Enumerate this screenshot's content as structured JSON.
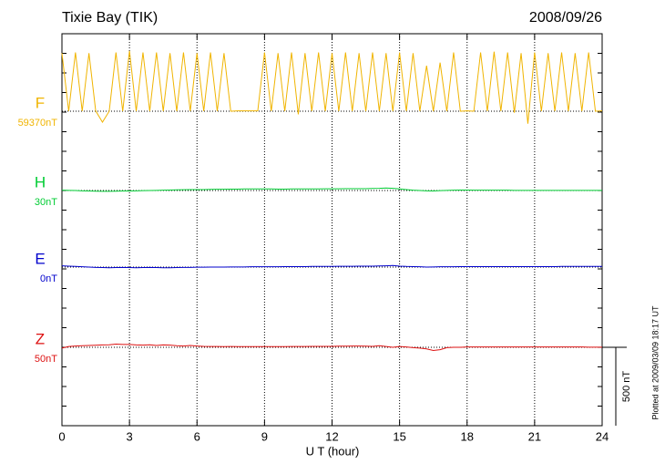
{
  "chart_data": {
    "type": "line",
    "title": "Tixie Bay (TIK)",
    "date": "2008/09/26",
    "x_label": "U T (hour)",
    "plotted_note": "Plotted at 2009/03/09 18:17 UT",
    "scale_bar": {
      "value": 500,
      "label": "500 nT"
    },
    "xlim": [
      0,
      24
    ],
    "xticks": [
      0,
      3,
      6,
      9,
      12,
      15,
      18,
      21,
      24
    ],
    "grid": true,
    "x": [
      0,
      0.3,
      0.6,
      0.9,
      1.2,
      1.5,
      1.8,
      2.1,
      2.4,
      2.7,
      3,
      3.3,
      3.6,
      3.9,
      4.2,
      4.5,
      4.8,
      5.1,
      5.4,
      5.7,
      6,
      6.3,
      6.6,
      6.9,
      7.2,
      7.5,
      7.8,
      8.1,
      8.4,
      8.7,
      9,
      9.3,
      9.6,
      9.9,
      10.2,
      10.5,
      10.8,
      11.1,
      11.4,
      11.7,
      12,
      12.3,
      12.6,
      12.9,
      13.2,
      13.5,
      13.8,
      14.1,
      14.4,
      14.7,
      15,
      15.3,
      15.6,
      15.9,
      16.2,
      16.5,
      16.8,
      17.1,
      17.4,
      17.7,
      18,
      18.3,
      18.6,
      18.9,
      19.2,
      19.5,
      19.8,
      20.1,
      20.4,
      20.7,
      21,
      21.3,
      21.6,
      21.9,
      22.2,
      22.5,
      22.8,
      23.1,
      23.4,
      23.7,
      24
    ],
    "series": [
      {
        "name": "F",
        "color": "#f0b400",
        "baseline": {
          "value": 59370,
          "label": "59370nT"
        },
        "values": [
          59740,
          59370,
          59745,
          59370,
          59740,
          59372,
          59300,
          59370,
          59745,
          59370,
          59755,
          59370,
          59745,
          59370,
          59745,
          59370,
          59740,
          59370,
          59745,
          59370,
          59740,
          59370,
          59745,
          59370,
          59740,
          59370,
          59372,
          59372,
          59372,
          59372,
          59745,
          59370,
          59740,
          59370,
          59745,
          59350,
          59740,
          59370,
          59745,
          59370,
          59740,
          59370,
          59745,
          59370,
          59740,
          59370,
          59745,
          59370,
          59740,
          59370,
          59745,
          59370,
          59740,
          59370,
          59660,
          59370,
          59680,
          59370,
          59745,
          59370,
          59372,
          59370,
          59745,
          59370,
          59750,
          59370,
          59745,
          59360,
          59740,
          59290,
          59745,
          59370,
          59740,
          59370,
          59745,
          59370,
          59740,
          59370,
          59745,
          59370,
          59372
        ]
      },
      {
        "name": "H",
        "color": "#00cc33",
        "baseline": {
          "value": 30,
          "label": "30nT"
        },
        "values": [
          32,
          31,
          30,
          28,
          27,
          26,
          25,
          25,
          26,
          27,
          27,
          28,
          29,
          30,
          31,
          32,
          33,
          34,
          35,
          36,
          36,
          36,
          37,
          38,
          38,
          39,
          39,
          40,
          40,
          40,
          40,
          40,
          39,
          39,
          40,
          40,
          40,
          40,
          40,
          41,
          41,
          41,
          42,
          42,
          42,
          42,
          43,
          44,
          46,
          44,
          40,
          36,
          32,
          30,
          28,
          27,
          29,
          31,
          32,
          33,
          33,
          32,
          32,
          32,
          32,
          32,
          32,
          31,
          31,
          31,
          31,
          31,
          31,
          31,
          31,
          31,
          31,
          31,
          31,
          31,
          31
        ]
      },
      {
        "name": "E",
        "color": "#0000cc",
        "baseline": {
          "value": 0,
          "label": "0nT"
        },
        "values": [
          8,
          6,
          4,
          2,
          0,
          -2,
          -3,
          -4,
          -3,
          -2,
          -3,
          -4,
          -3,
          -2,
          -3,
          -4,
          -4,
          -3,
          -2,
          -2,
          -1,
          -1,
          0,
          0,
          0,
          1,
          1,
          1,
          2,
          2,
          2,
          2,
          2,
          3,
          3,
          3,
          3,
          4,
          4,
          4,
          4,
          5,
          5,
          5,
          6,
          6,
          6,
          7,
          8,
          10,
          6,
          4,
          3,
          2,
          0,
          1,
          2,
          2,
          2,
          3,
          3,
          3,
          3,
          3,
          3,
          3,
          3,
          3,
          3,
          3,
          3,
          3,
          3,
          3,
          4,
          4,
          4,
          4,
          4,
          4,
          4
        ]
      },
      {
        "name": "Z",
        "color": "#dd1111",
        "baseline": {
          "value": 50,
          "label": "50nT"
        },
        "values": [
          45,
          55,
          58,
          60,
          62,
          63,
          65,
          66,
          70,
          68,
          68,
          65,
          64,
          66,
          62,
          65,
          64,
          60,
          58,
          62,
          58,
          56,
          55,
          55,
          54,
          55,
          54,
          54,
          54,
          54,
          54,
          54,
          54,
          54,
          55,
          55,
          55,
          56,
          56,
          56,
          56,
          57,
          57,
          58,
          58,
          57,
          56,
          60,
          55,
          50,
          55,
          52,
          48,
          45,
          40,
          30,
          35,
          48,
          50,
          50,
          52,
          52,
          52,
          52,
          52,
          52,
          52,
          52,
          52,
          52,
          52,
          52,
          52,
          52,
          52,
          52,
          52,
          52,
          51,
          51,
          51
        ]
      }
    ]
  }
}
